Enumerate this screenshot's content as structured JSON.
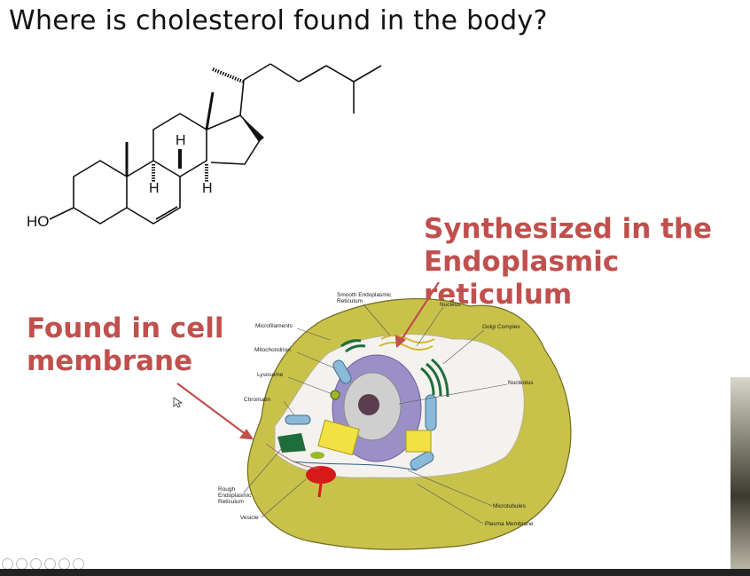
{
  "slide": {
    "title": "Where is cholesterol found in the body?",
    "callout_er": [
      "Synthesized in the",
      "Endoplasmic reticulum"
    ],
    "callout_membrane": [
      "Found in cell",
      "membrane"
    ]
  },
  "molecule": {
    "ho_label": "HO",
    "h_label": "H"
  },
  "cell_labels": {
    "smooth_er": [
      "Smooth Endoplasmic",
      "Reticulum"
    ],
    "nucleus": "Nucleus",
    "golgi": "Golgi Complex",
    "microfilaments": "Microfilaments",
    "mitochondrion": "Mitochondrion",
    "lysosome": "Lysosome",
    "chromatin": "Chromatin",
    "nucleolus": "Nucleolus",
    "rough_er": [
      "Rough",
      "Endoplasmic",
      "Reticulum"
    ],
    "vesicle": "Vesicle",
    "microtubules": "Microtubules",
    "plasma_membrane": "Plasma Membrane"
  },
  "colors": {
    "callout": "#c0504d",
    "cytoplasm": "#c8c24a",
    "nucleus": "#9a8fc7"
  }
}
